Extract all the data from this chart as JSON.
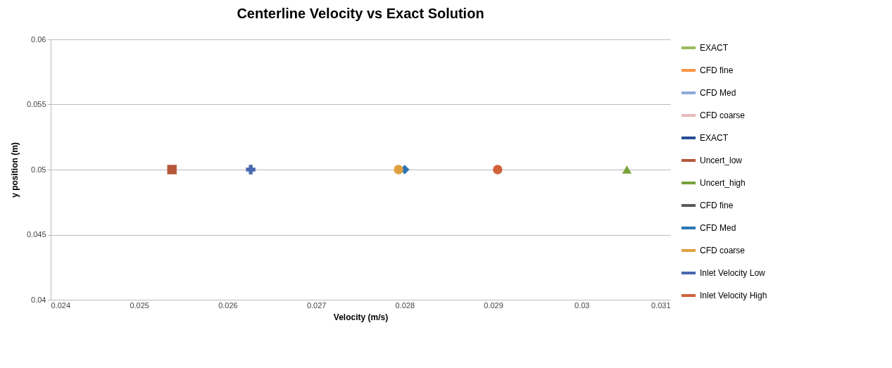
{
  "chart_data": {
    "type": "line",
    "title": "Centerline Velocity vs Exact Solution",
    "xlabel": "Velocity (m/s)",
    "ylabel": "y position (m)",
    "xlim": [
      0.024,
      0.031
    ],
    "xticks": [
      0.024,
      0.025,
      0.026,
      0.027,
      0.028,
      0.029,
      0.03,
      0.031
    ],
    "ylim": [
      0.04,
      0.06
    ],
    "yticks": [
      0.04,
      0.045,
      0.05,
      0.055,
      0.06
    ],
    "grid": "y",
    "legend": "right",
    "series": [
      {
        "name": "EXACT",
        "color": "#9bbb59"
      },
      {
        "name": "CFD fine",
        "color": "#f79646"
      },
      {
        "name": "CFD Med",
        "color": "#8ea9db"
      },
      {
        "name": "CFD coarse",
        "color": "#e6b9b8"
      },
      {
        "name": "EXACT",
        "color": "#2a4f96"
      },
      {
        "name": "Uncert_low",
        "color": "#b5573a",
        "marker": "square",
        "x": [
          0.02537
        ],
        "values": [
          0.05
        ]
      },
      {
        "name": "Uncert_high",
        "color": "#77a33a",
        "marker": "triangle",
        "x": [
          0.03051
        ],
        "values": [
          0.05
        ]
      },
      {
        "name": "CFD fine",
        "color": "#595959"
      },
      {
        "name": "CFD Med",
        "color": "#2e75b6",
        "marker": "diamond",
        "x": [
          0.028
        ],
        "values": [
          0.05
        ]
      },
      {
        "name": "CFD coarse",
        "color": "#e0a040",
        "marker": "circle",
        "x": [
          0.02793
        ],
        "values": [
          0.05
        ]
      },
      {
        "name": "Inlet Velocity Low",
        "color": "#4a68b0",
        "marker": "cross",
        "x": [
          0.02626
        ],
        "values": [
          0.05
        ]
      },
      {
        "name": "Inlet Velocity High",
        "color": "#d0623a",
        "marker": "circle",
        "x": [
          0.02905
        ],
        "values": [
          0.05
        ]
      }
    ]
  }
}
